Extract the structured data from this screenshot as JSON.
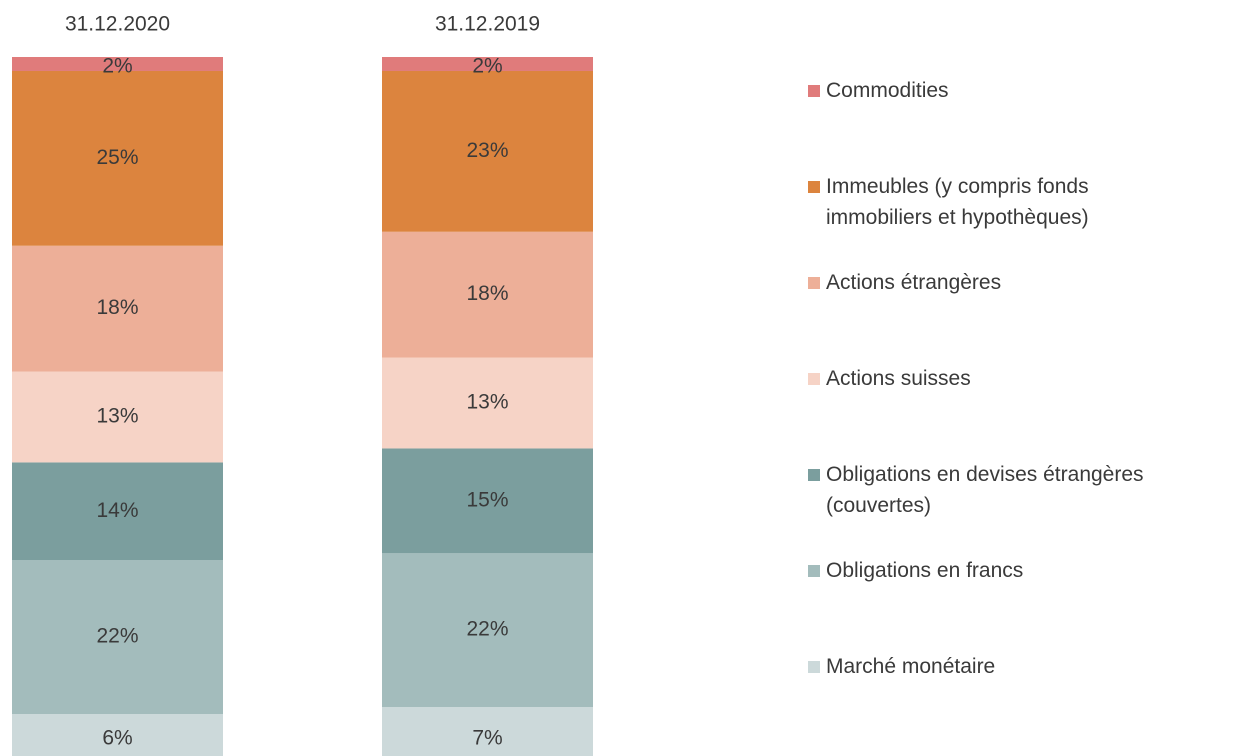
{
  "chart_data": {
    "type": "stacked-bar",
    "categories": [
      "31.12.2020",
      "31.12.2019"
    ],
    "series": [
      {
        "name": "Marché monétaire",
        "color": "#ccd9da",
        "values": [
          6,
          7
        ],
        "value_labels": [
          "6%",
          "7%"
        ]
      },
      {
        "name": "Obligations en francs",
        "color": "#a3bcbc",
        "values": [
          22,
          22
        ],
        "value_labels": [
          "22%",
          "22%"
        ]
      },
      {
        "name": "Obligations en devises étrangères (couvertes)",
        "color": "#7b9e9e",
        "values": [
          14,
          15
        ],
        "value_labels": [
          "14%",
          "15%"
        ]
      },
      {
        "name": "Actions suisses",
        "color": "#f6d3c6",
        "values": [
          13,
          13
        ],
        "value_labels": [
          "13%",
          "13%"
        ]
      },
      {
        "name": "Actions étrangères",
        "color": "#edaf98",
        "values": [
          18,
          18
        ],
        "value_labels": [
          "18%",
          "18%"
        ]
      },
      {
        "name": "Immeubles (y compris fonds immobiliers et hypothèques)",
        "color": "#dc843e",
        "values": [
          25,
          23
        ],
        "value_labels": [
          "25%",
          "23%"
        ]
      },
      {
        "name": "Commodities",
        "color": "#e07b7b",
        "values": [
          2,
          2
        ],
        "value_labels": [
          "2%",
          "2%"
        ]
      }
    ]
  }
}
